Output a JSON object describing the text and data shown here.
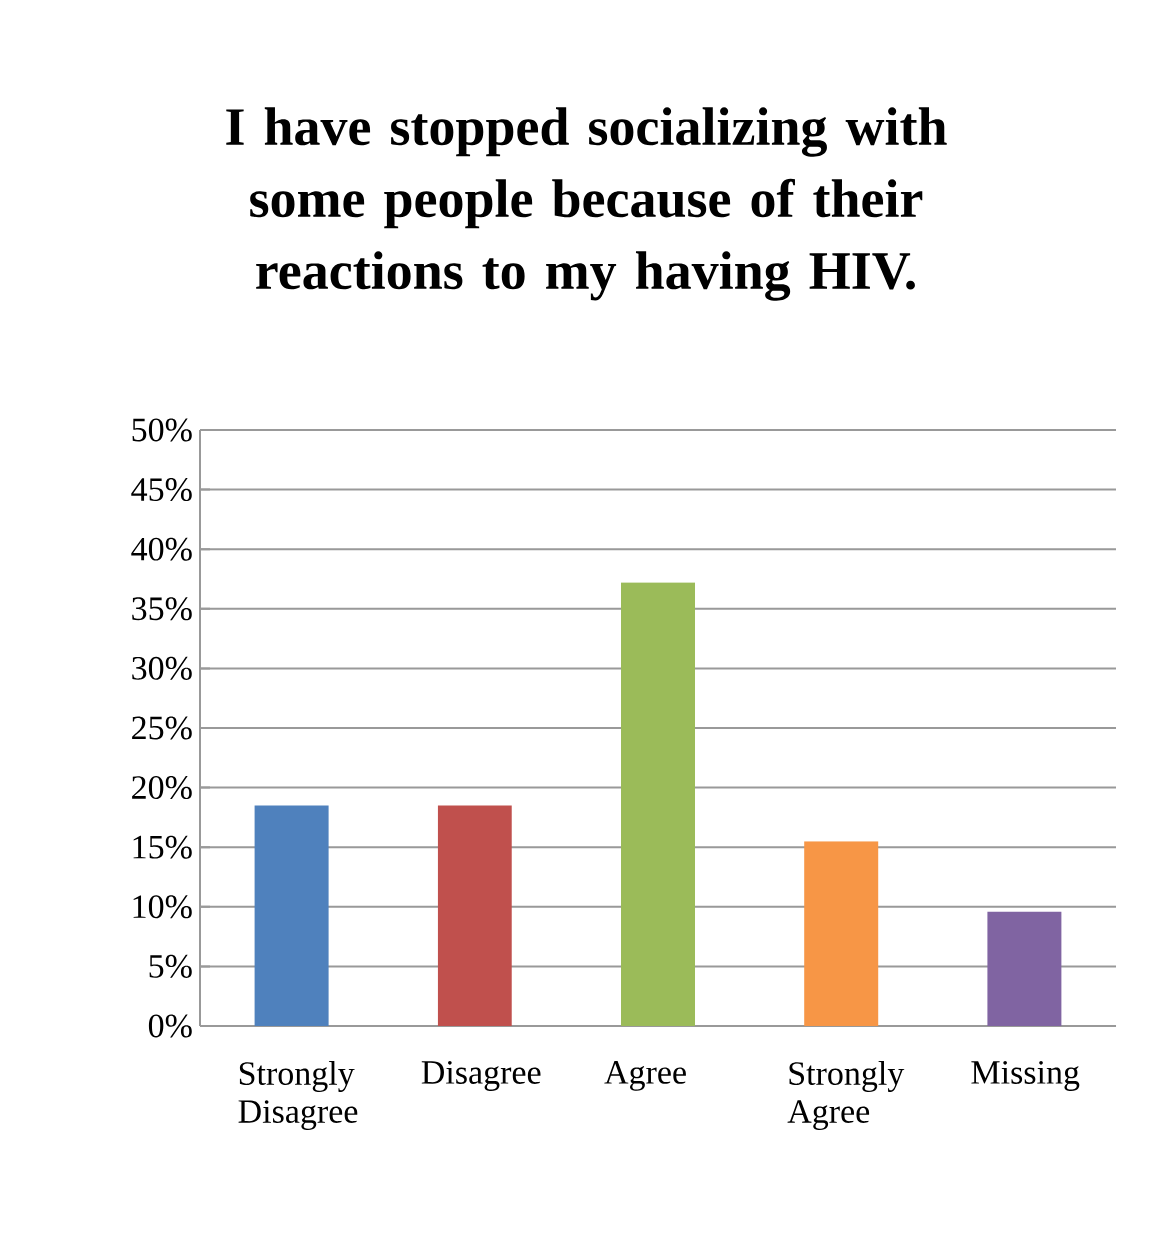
{
  "chart_data": {
    "type": "bar",
    "title": "I have stopped socializing with some people because of their reactions to my having HIV.",
    "categories": [
      "Strongly Disagree",
      "Disagree",
      "Agree",
      "Strongly Agree",
      "Missing"
    ],
    "values": [
      18.5,
      18.5,
      37.2,
      15.5,
      9.6
    ],
    "colors": [
      "#4f81bd",
      "#c0504d",
      "#9bbb59",
      "#f79646",
      "#8064a2"
    ],
    "ylim": [
      0,
      50
    ],
    "yticks": [
      {
        "value": 0,
        "label": "0%"
      },
      {
        "value": 5,
        "label": "5%"
      },
      {
        "value": 10,
        "label": "10%"
      },
      {
        "value": 15,
        "label": "15%"
      },
      {
        "value": 20,
        "label": "20%"
      },
      {
        "value": 25,
        "label": "25%"
      },
      {
        "value": 30,
        "label": "30%"
      },
      {
        "value": 35,
        "label": "35%"
      },
      {
        "value": 40,
        "label": "40%"
      },
      {
        "value": 45,
        "label": "45%"
      },
      {
        "value": 50,
        "label": "50%"
      }
    ],
    "grid": "y"
  }
}
